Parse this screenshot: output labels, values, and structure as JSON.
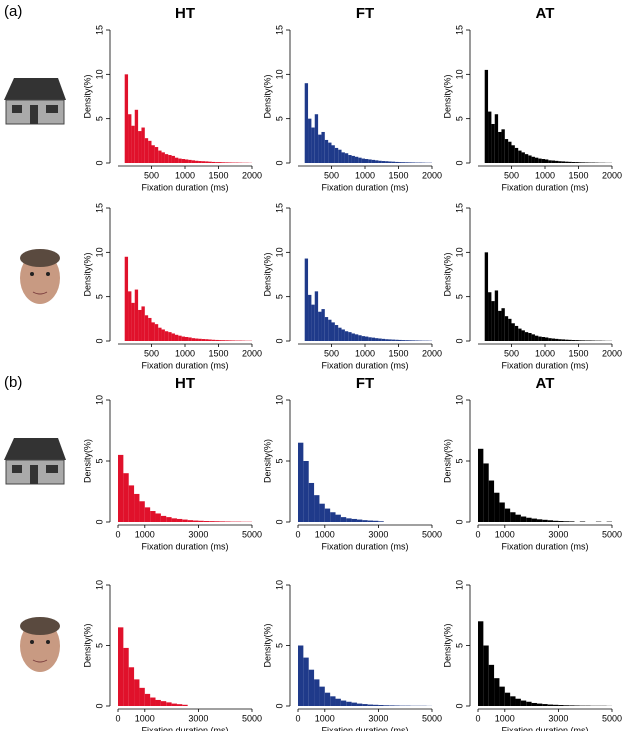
{
  "panel_labels": [
    "(a)",
    "(b)"
  ],
  "chart_data": [
    {
      "type": "histogram",
      "title": "HT",
      "color": "#e0112b",
      "xlabel": "Fixation duration (ms)",
      "ylabel": "Density(%)",
      "bins": [
        100,
        150,
        200,
        250,
        300,
        350,
        400,
        450,
        500,
        550,
        600,
        650,
        700,
        750,
        800,
        850,
        900,
        950,
        1000,
        1050,
        1100,
        1150,
        1200,
        1250,
        1300,
        1350,
        1400,
        1450,
        1500,
        1550,
        1600,
        1650,
        1700,
        1750,
        1800,
        1850,
        1900,
        1950,
        2000
      ],
      "values": [
        10,
        5.5,
        4.2,
        6,
        3.6,
        4,
        2.8,
        2.5,
        2,
        1.8,
        1.4,
        1.2,
        1,
        0.9,
        0.8,
        0.6,
        0.5,
        0.45,
        0.4,
        0.35,
        0.3,
        0.25,
        0.22,
        0.2,
        0.18,
        0.15,
        0.12,
        0.1,
        0.1,
        0.08,
        0.07,
        0.06,
        0.05,
        0.05,
        0.04,
        0.03,
        0.03,
        0.02
      ],
      "xlim": [
        0,
        2000
      ],
      "ylim": [
        0,
        15
      ],
      "xticks": [
        500,
        1000,
        1500,
        2000
      ],
      "yticks": [
        0,
        5,
        10,
        15
      ]
    },
    {
      "type": "histogram",
      "title": "FT",
      "color": "#1f3a8a",
      "xlabel": "Fixation duration (ms)",
      "ylabel": "Density(%)",
      "bins": [
        100,
        150,
        200,
        250,
        300,
        350,
        400,
        450,
        500,
        550,
        600,
        650,
        700,
        750,
        800,
        850,
        900,
        950,
        1000,
        1050,
        1100,
        1150,
        1200,
        1250,
        1300,
        1350,
        1400,
        1450,
        1500,
        1550,
        1600,
        1650,
        1700,
        1750,
        1800,
        1850,
        1900,
        1950,
        2000
      ],
      "values": [
        9,
        5,
        4,
        5.5,
        3.2,
        3.5,
        2.6,
        2.3,
        2,
        1.7,
        1.5,
        1.2,
        1.1,
        0.9,
        0.8,
        0.7,
        0.6,
        0.5,
        0.45,
        0.4,
        0.35,
        0.3,
        0.25,
        0.22,
        0.2,
        0.17,
        0.15,
        0.12,
        0.1,
        0.09,
        0.08,
        0.07,
        0.06,
        0.05,
        0.05,
        0.04,
        0.03,
        0.03
      ],
      "xlim": [
        0,
        2000
      ],
      "ylim": [
        0,
        15
      ],
      "xticks": [
        500,
        1000,
        1500,
        2000
      ],
      "yticks": [
        0,
        5,
        10,
        15
      ]
    },
    {
      "type": "histogram",
      "title": "AT",
      "color": "#000000",
      "xlabel": "Fixation duration (ms)",
      "ylabel": "Density(%)",
      "bins": [
        100,
        150,
        200,
        250,
        300,
        350,
        400,
        450,
        500,
        550,
        600,
        650,
        700,
        750,
        800,
        850,
        900,
        950,
        1000,
        1050,
        1100,
        1150,
        1200,
        1250,
        1300,
        1350,
        1400,
        1450,
        1500,
        1550,
        1600,
        1650,
        1700,
        1750,
        1800,
        1850,
        1900,
        1950,
        2000
      ],
      "values": [
        10.5,
        5.8,
        4.4,
        5.5,
        3.5,
        3.8,
        2.7,
        2.4,
        2,
        1.7,
        1.4,
        1.2,
        1,
        0.85,
        0.7,
        0.6,
        0.5,
        0.45,
        0.4,
        0.3,
        0.28,
        0.24,
        0.2,
        0.18,
        0.15,
        0.13,
        0.11,
        0.1,
        0.08,
        0.07,
        0.06,
        0.05,
        0.05,
        0.04,
        0.03,
        0.03,
        0.02,
        0.02
      ],
      "xlim": [
        0,
        2000
      ],
      "ylim": [
        0,
        15
      ],
      "xticks": [
        500,
        1000,
        1500,
        2000
      ],
      "yticks": [
        0,
        5,
        10,
        15
      ]
    },
    {
      "type": "histogram",
      "color": "#e0112b",
      "xlabel": "Fixation duration (ms)",
      "ylabel": "Density(%)",
      "bins": [
        100,
        150,
        200,
        250,
        300,
        350,
        400,
        450,
        500,
        550,
        600,
        650,
        700,
        750,
        800,
        850,
        900,
        950,
        1000,
        1050,
        1100,
        1150,
        1200,
        1250,
        1300,
        1350,
        1400,
        1450,
        1500,
        1550,
        1600,
        1650,
        1700,
        1750,
        1800,
        1850,
        1900,
        1950,
        2000
      ],
      "values": [
        9.5,
        5.6,
        4.3,
        5.8,
        3.5,
        3.9,
        2.9,
        2.6,
        2.1,
        1.9,
        1.5,
        1.3,
        1.1,
        1,
        0.85,
        0.7,
        0.6,
        0.5,
        0.45,
        0.4,
        0.32,
        0.28,
        0.25,
        0.22,
        0.2,
        0.17,
        0.14,
        0.12,
        0.1,
        0.09,
        0.08,
        0.07,
        0.06,
        0.05,
        0.05,
        0.04,
        0.03,
        0.03
      ],
      "xlim": [
        0,
        2000
      ],
      "ylim": [
        0,
        15
      ],
      "xticks": [
        500,
        1000,
        1500,
        2000
      ],
      "yticks": [
        0,
        5,
        10,
        15
      ]
    },
    {
      "type": "histogram",
      "color": "#1f3a8a",
      "xlabel": "Fixation duration (ms)",
      "ylabel": "Density(%)",
      "bins": [
        100,
        150,
        200,
        250,
        300,
        350,
        400,
        450,
        500,
        550,
        600,
        650,
        700,
        750,
        800,
        850,
        900,
        950,
        1000,
        1050,
        1100,
        1150,
        1200,
        1250,
        1300,
        1350,
        1400,
        1450,
        1500,
        1550,
        1600,
        1650,
        1700,
        1750,
        1800,
        1850,
        1900,
        1950,
        2000
      ],
      "values": [
        9.3,
        5.2,
        4.1,
        5.6,
        3.3,
        3.6,
        2.7,
        2.4,
        2.1,
        1.8,
        1.5,
        1.3,
        1.1,
        1,
        0.85,
        0.75,
        0.65,
        0.55,
        0.5,
        0.42,
        0.38,
        0.32,
        0.28,
        0.24,
        0.2,
        0.18,
        0.16,
        0.14,
        0.12,
        0.1,
        0.09,
        0.08,
        0.07,
        0.06,
        0.05,
        0.04,
        0.04,
        0.03
      ],
      "xlim": [
        0,
        2000
      ],
      "ylim": [
        0,
        15
      ],
      "xticks": [
        500,
        1000,
        1500,
        2000
      ],
      "yticks": [
        0,
        5,
        10,
        15
      ]
    },
    {
      "type": "histogram",
      "color": "#000000",
      "xlabel": "Fixation duration (ms)",
      "ylabel": "Density(%)",
      "bins": [
        100,
        150,
        200,
        250,
        300,
        350,
        400,
        450,
        500,
        550,
        600,
        650,
        700,
        750,
        800,
        850,
        900,
        950,
        1000,
        1050,
        1100,
        1150,
        1200,
        1250,
        1300,
        1350,
        1400,
        1450,
        1500,
        1550,
        1600,
        1650,
        1700,
        1750,
        1800,
        1850,
        1900,
        1950,
        2000
      ],
      "values": [
        10,
        5.5,
        4.5,
        5.7,
        3.4,
        3.7,
        2.8,
        2.5,
        2,
        1.7,
        1.4,
        1.2,
        1,
        0.9,
        0.75,
        0.6,
        0.5,
        0.45,
        0.4,
        0.32,
        0.28,
        0.24,
        0.2,
        0.18,
        0.15,
        0.13,
        0.11,
        0.1,
        0.08,
        0.07,
        0.06,
        0.06,
        0.05,
        0.04,
        0.04,
        0.03,
        0.02,
        0.02
      ],
      "xlim": [
        0,
        2000
      ],
      "ylim": [
        0,
        15
      ],
      "xticks": [
        500,
        1000,
        1500,
        2000
      ],
      "yticks": [
        0,
        5,
        10,
        15
      ]
    },
    {
      "type": "histogram",
      "title": "HT",
      "color": "#e0112b",
      "xlabel": "Fixation duration (ms)",
      "ylabel": "Density(%)",
      "bins": [
        0,
        200,
        400,
        600,
        800,
        1000,
        1200,
        1400,
        1600,
        1800,
        2000,
        2200,
        2400,
        2600,
        2800,
        3000,
        3200,
        3400,
        3600,
        3800,
        4000,
        4200,
        4400,
        4600,
        4800,
        5000
      ],
      "values": [
        5.5,
        4,
        3,
        2.3,
        1.7,
        1.2,
        0.9,
        0.7,
        0.5,
        0.4,
        0.3,
        0.25,
        0.2,
        0.15,
        0.12,
        0.1,
        0.08,
        0.07,
        0.06,
        0.05,
        0.04,
        0.03,
        0.03,
        0.02,
        0.02
      ],
      "xlim": [
        0,
        5000
      ],
      "ylim": [
        0,
        10
      ],
      "xticks": [
        0,
        1000,
        3000,
        5000
      ],
      "yticks": [
        0,
        5,
        10
      ]
    },
    {
      "type": "histogram",
      "title": "FT",
      "color": "#1f3a8a",
      "xlabel": "Fixation duration (ms)",
      "ylabel": "Density(%)",
      "bins": [
        0,
        200,
        400,
        600,
        800,
        1000,
        1200,
        1400,
        1600,
        1800,
        2000,
        2200,
        2400,
        2600,
        2800,
        3000,
        3200,
        3400,
        3600,
        3800,
        4000,
        4200,
        4400,
        4600,
        4800,
        5000
      ],
      "values": [
        6.5,
        5,
        3.2,
        2.2,
        1.5,
        1.1,
        0.8,
        0.6,
        0.4,
        0.3,
        0.25,
        0.2,
        0.15,
        0.12,
        0.1,
        0.06,
        0,
        0,
        0,
        0,
        0,
        0,
        0,
        0,
        0
      ],
      "xlim": [
        0,
        5000
      ],
      "ylim": [
        0,
        10
      ],
      "xticks": [
        0,
        1000,
        3000,
        5000
      ],
      "yticks": [
        0,
        5,
        10
      ]
    },
    {
      "type": "histogram",
      "title": "AT",
      "color": "#000000",
      "xlabel": "Fixation duration (ms)",
      "ylabel": "Density(%)",
      "bins": [
        0,
        200,
        400,
        600,
        800,
        1000,
        1200,
        1400,
        1600,
        1800,
        2000,
        2200,
        2400,
        2600,
        2800,
        3000,
        3200,
        3400,
        3600,
        3800,
        4000,
        4200,
        4400,
        4600,
        4800,
        5000
      ],
      "values": [
        6,
        4.8,
        3.4,
        2.4,
        1.6,
        1.1,
        0.8,
        0.6,
        0.45,
        0.35,
        0.28,
        0.22,
        0.18,
        0.14,
        0.1,
        0.08,
        0.06,
        0.05,
        0,
        0.04,
        0,
        0,
        0.03,
        0,
        0.03
      ],
      "xlim": [
        0,
        5000
      ],
      "ylim": [
        0,
        10
      ],
      "xticks": [
        0,
        1000,
        3000,
        5000
      ],
      "yticks": [
        0,
        5,
        10
      ]
    },
    {
      "type": "histogram",
      "color": "#e0112b",
      "xlabel": "Fixation duration (ms)",
      "ylabel": "Density(%)",
      "bins": [
        0,
        200,
        400,
        600,
        800,
        1000,
        1200,
        1400,
        1600,
        1800,
        2000,
        2200,
        2400,
        2600,
        2800,
        3000,
        3200,
        3400,
        3600,
        3800,
        4000,
        4200,
        4400,
        4600,
        4800,
        5000
      ],
      "values": [
        6.5,
        4.8,
        3.2,
        2.2,
        1.5,
        1,
        0.7,
        0.5,
        0.4,
        0.3,
        0.2,
        0.15,
        0.1,
        0,
        0,
        0,
        0,
        0,
        0,
        0,
        0,
        0,
        0,
        0,
        0
      ],
      "xlim": [
        0,
        5000
      ],
      "ylim": [
        0,
        10
      ],
      "xticks": [
        0,
        1000,
        3000,
        5000
      ],
      "yticks": [
        0,
        5,
        10
      ]
    },
    {
      "type": "histogram",
      "color": "#1f3a8a",
      "xlabel": "Fixation duration (ms)",
      "ylabel": "Density(%)",
      "bins": [
        0,
        200,
        400,
        600,
        800,
        1000,
        1200,
        1400,
        1600,
        1800,
        2000,
        2200,
        2400,
        2600,
        2800,
        3000,
        3200,
        3400,
        3600,
        3800,
        4000,
        4200,
        4400,
        4600,
        4800,
        5000
      ],
      "values": [
        5,
        4,
        3,
        2.2,
        1.6,
        1.1,
        0.8,
        0.6,
        0.45,
        0.35,
        0.28,
        0.2,
        0.16,
        0.12,
        0.1,
        0.08,
        0.06,
        0.05,
        0.04,
        0.03,
        0.03,
        0.02,
        0.02,
        0.02,
        0.01
      ],
      "xlim": [
        0,
        5000
      ],
      "ylim": [
        0,
        10
      ],
      "xticks": [
        0,
        1000,
        3000,
        5000
      ],
      "yticks": [
        0,
        5,
        10
      ]
    },
    {
      "type": "histogram",
      "color": "#000000",
      "xlabel": "Fixation duration (ms)",
      "ylabel": "Density(%)",
      "bins": [
        0,
        200,
        400,
        600,
        800,
        1000,
        1200,
        1400,
        1600,
        1800,
        2000,
        2200,
        2400,
        2600,
        2800,
        3000,
        3200,
        3400,
        3600,
        3800,
        4000,
        4200,
        4400,
        4600,
        4800,
        5000
      ],
      "values": [
        7,
        5,
        3.4,
        2.3,
        1.6,
        1.1,
        0.8,
        0.6,
        0.45,
        0.35,
        0.25,
        0.2,
        0.16,
        0.12,
        0.1,
        0.08,
        0.06,
        0.05,
        0.04,
        0.03,
        0.03,
        0.02,
        0.02,
        0.02,
        0.01
      ],
      "xlim": [
        0,
        5000
      ],
      "ylim": [
        0,
        10
      ],
      "xticks": [
        0,
        1000,
        3000,
        5000
      ],
      "yticks": [
        0,
        5,
        10
      ]
    }
  ]
}
